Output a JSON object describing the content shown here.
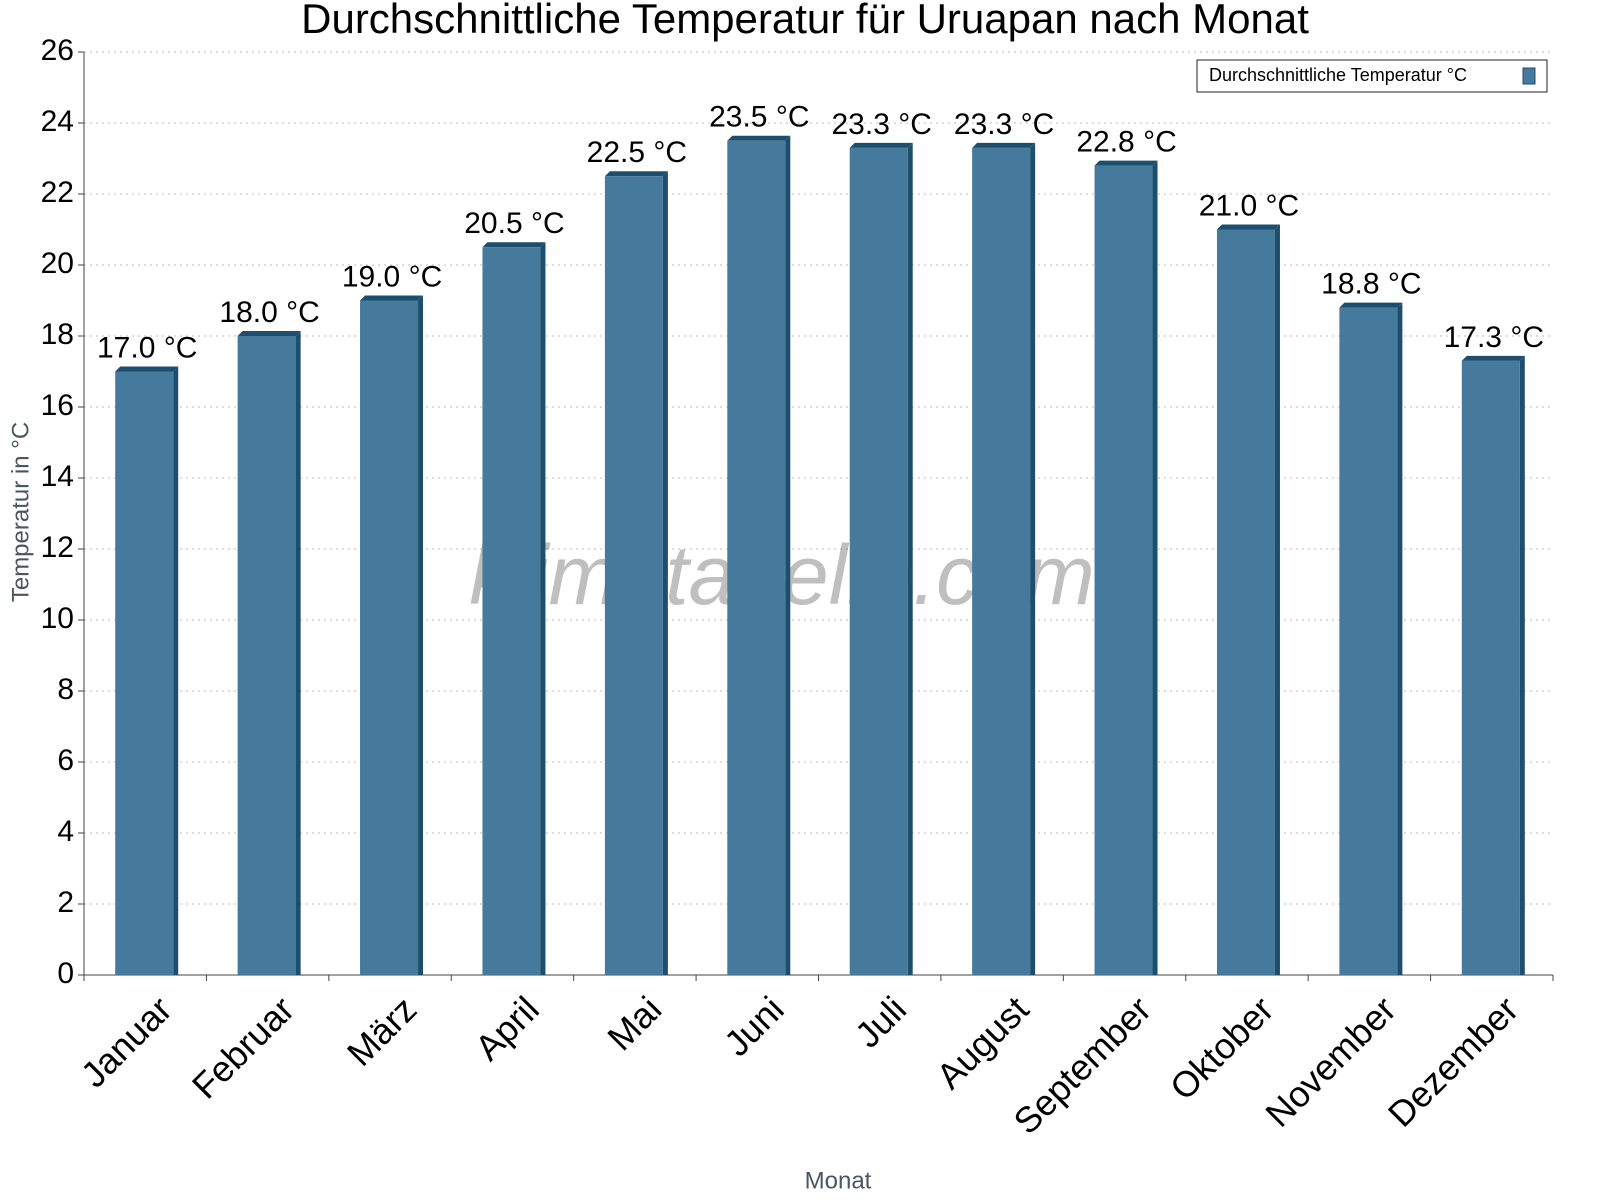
{
  "chart_data": {
    "type": "bar",
    "title": "Durchschnittliche Temperatur für Uruapan nach Monat",
    "x_label": "Monat",
    "y_label": "Temperatur in °C",
    "watermark": "klimatabelle.com",
    "categories": [
      "Januar",
      "Februar",
      "März",
      "April",
      "Mai",
      "Juni",
      "Juli",
      "August",
      "September",
      "Oktober",
      "November",
      "Dezember"
    ],
    "series": [
      {
        "name": "Durchschnittliche Temperatur °C",
        "color": "#467a9c",
        "values": [
          17.0,
          18.0,
          19.0,
          20.5,
          22.5,
          23.5,
          23.3,
          23.3,
          22.8,
          21.0,
          18.8,
          17.3
        ],
        "value_labels": [
          "17.0 °C",
          "18.0 °C",
          "19.0 °C",
          "20.5 °C",
          "22.5 °C",
          "23.5 °C",
          "23.3 °C",
          "23.3 °C",
          "22.8 °C",
          "21.0 °C",
          "18.8 °C",
          "17.3 °C"
        ]
      }
    ],
    "ylim": [
      0,
      26
    ],
    "yticks": [
      0,
      2,
      4,
      6,
      8,
      10,
      12,
      14,
      16,
      18,
      20,
      22,
      24,
      26
    ],
    "grid": true,
    "legend": "top-right"
  }
}
